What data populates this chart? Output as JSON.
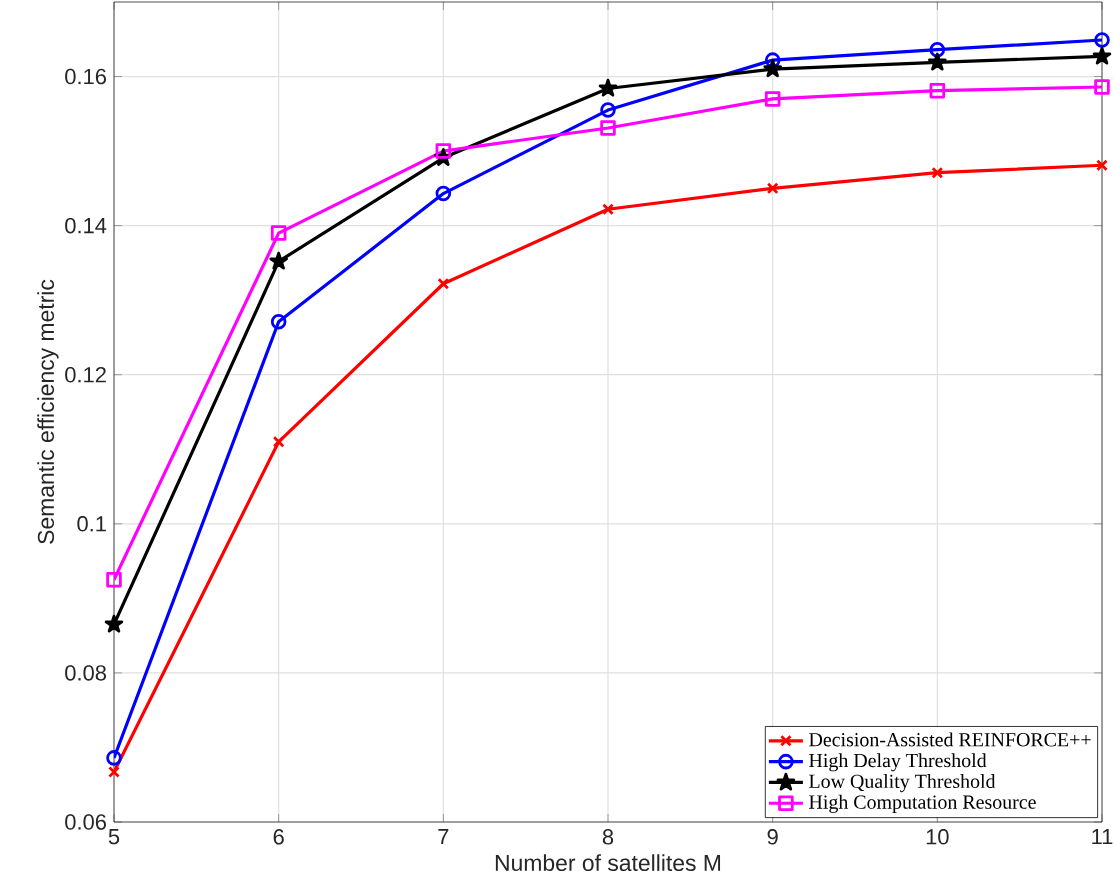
{
  "chart_data": {
    "type": "line",
    "xlabel": "Number of satellites M",
    "ylabel": "Semantic efficiency metric",
    "x": [
      5,
      6,
      7,
      8,
      9,
      10,
      11
    ],
    "series": [
      {
        "name": "Decision-Assisted REINFORCE++",
        "color": "#ff0000",
        "marker": "cross",
        "values": [
          0.0667,
          0.111,
          0.1322,
          0.1422,
          0.145,
          0.1471,
          0.1481
        ]
      },
      {
        "name": "High Delay Threshold",
        "color": "#0000ff",
        "marker": "circle",
        "values": [
          0.0686,
          0.1271,
          0.1443,
          0.1555,
          0.1622,
          0.1636,
          0.1649
        ]
      },
      {
        "name": "Low Quality Threshold",
        "color": "#000000",
        "marker": "star",
        "values": [
          0.0865,
          0.1352,
          0.1491,
          0.1584,
          0.161,
          0.1619,
          0.1627
        ]
      },
      {
        "name": "High Computation Resource",
        "color": "#ff00ff",
        "marker": "square",
        "values": [
          0.0925,
          0.139,
          0.15,
          0.1531,
          0.157,
          0.1581,
          0.1586
        ]
      }
    ],
    "xlim": [
      5,
      11
    ],
    "ylim": [
      0.06,
      0.17
    ],
    "xticks": [
      5,
      6,
      7,
      8,
      9,
      10,
      11
    ],
    "yticks": [
      0.06,
      0.08,
      0.1,
      0.12,
      0.14,
      0.16
    ],
    "grid": true,
    "legend": "bottom right",
    "line_style": "solid"
  }
}
